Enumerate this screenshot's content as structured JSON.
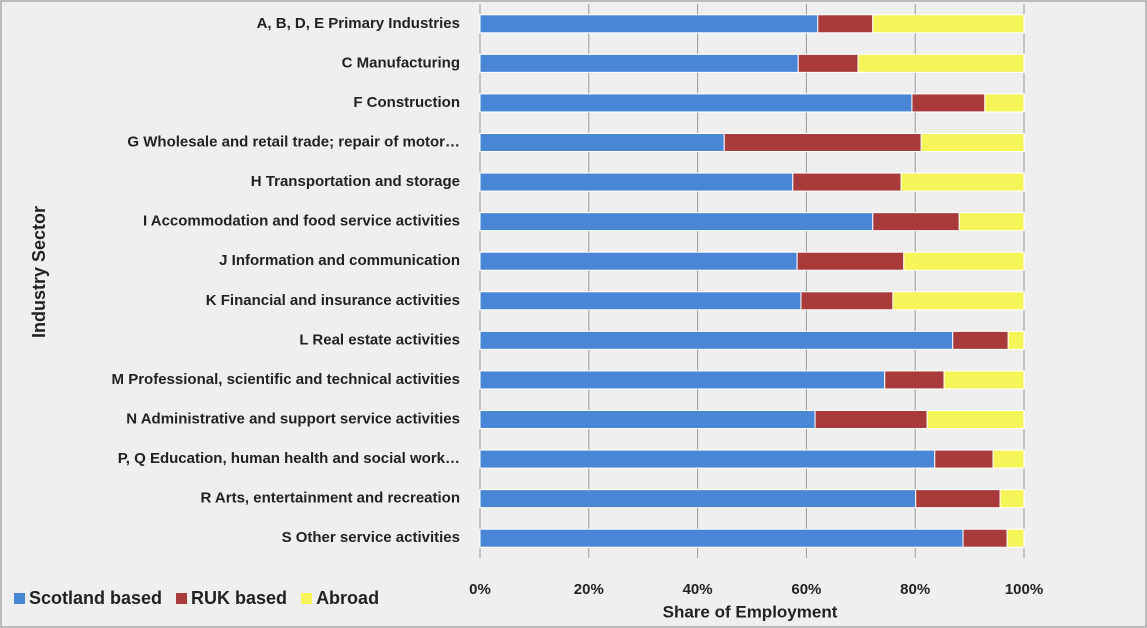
{
  "chart_data": {
    "type": "stacked_barh",
    "xlabel": "Share of Employment",
    "ylabel": "Industry Sector",
    "categories": [
      "A, B, D, E Primary Industries",
      "C Manufacturing",
      "F Construction",
      "G Wholesale and retail trade; repair of motor…",
      "H Transportation and storage",
      "I Accommodation and food service activities",
      "J Information and communication",
      "K Financial and insurance activities",
      "L Real estate activities",
      "M Professional, scientific and technical activities",
      "N Administrative and support service activities",
      "P, Q Education, human health and social work…",
      "R Arts, entertainment and recreation",
      "S Other service activities"
    ],
    "series": [
      {
        "name": "Scotland based",
        "color": "#4a86d6",
        "values": [
          62.1,
          58.5,
          79.4,
          44.9,
          57.5,
          72.2,
          58.3,
          59.0,
          86.9,
          74.4,
          61.6,
          83.6,
          80.1,
          88.8
        ]
      },
      {
        "name": "RUK based",
        "color": "#a83a3a",
        "values": [
          10.1,
          11.0,
          13.4,
          36.2,
          19.9,
          15.9,
          19.6,
          16.9,
          10.2,
          10.9,
          20.6,
          10.7,
          15.5,
          8.1
        ]
      },
      {
        "name": "Abroad",
        "color": "#f5f55a",
        "values": [
          27.8,
          30.5,
          7.2,
          18.9,
          22.6,
          11.9,
          22.1,
          24.1,
          2.9,
          14.7,
          17.8,
          5.7,
          4.4,
          3.1
        ]
      }
    ],
    "xlim": [
      0,
      100
    ],
    "xticks": [
      {
        "value": 0,
        "label": "0%"
      },
      {
        "value": 20,
        "label": "20%"
      },
      {
        "value": 40,
        "label": "40%"
      },
      {
        "value": 60,
        "label": "60%"
      },
      {
        "value": 80,
        "label": "80%"
      },
      {
        "value": 100,
        "label": "100%"
      }
    ],
    "grid": true,
    "legend": "bottom-left"
  }
}
